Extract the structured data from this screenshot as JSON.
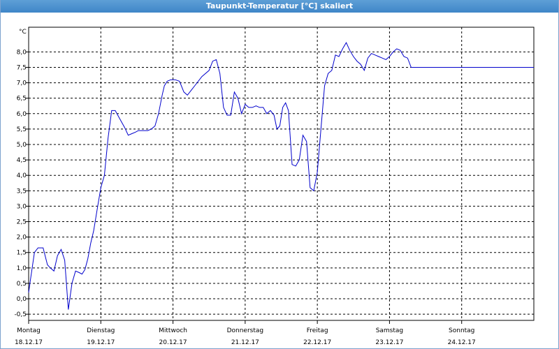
{
  "window": {
    "title": "Taupunkt-Temperatur [°C] skaliert"
  },
  "chart_data": {
    "type": "line",
    "title": "Taupunkt-Temperatur [°C] skaliert",
    "unit": "°C",
    "ylim": [
      -0.7,
      8.8
    ],
    "yticks": [
      "-0,5",
      "0,0",
      "0,5",
      "1,0",
      "1,5",
      "2,0",
      "2,5",
      "3,0",
      "3,5",
      "4,0",
      "4,5",
      "5,0",
      "5,5",
      "6,0",
      "6,5",
      "7,0",
      "7,5",
      "8,0"
    ],
    "ytick_values": [
      -0.5,
      0,
      0.5,
      1,
      1.5,
      2,
      2.5,
      3,
      3.5,
      4,
      4.5,
      5,
      5.5,
      6,
      6.5,
      7,
      7.5,
      8
    ],
    "xlim": [
      0,
      7
    ],
    "day_labels": [
      {
        "day": "Montag",
        "date": "18.12.17"
      },
      {
        "day": "Dienstag",
        "date": "19.12.17"
      },
      {
        "day": "Mittwoch",
        "date": "20.12.17"
      },
      {
        "day": "Donnerstag",
        "date": "21.12.17"
      },
      {
        "day": "Freitag",
        "date": "22.12.17"
      },
      {
        "day": "Samstag",
        "date": "23.12.17"
      },
      {
        "day": "Sonntag",
        "date": "24.12.17"
      }
    ],
    "grid": true,
    "line_color": "#0000cc",
    "series": [
      {
        "x": [
          0,
          0.03,
          0.08,
          0.13,
          0.2,
          0.26,
          0.3,
          0.35,
          0.4,
          0.45,
          0.5,
          0.55,
          0.6,
          0.65,
          0.7,
          0.74,
          0.78,
          0.82,
          0.86,
          0.9,
          0.95,
          1.0,
          1.05,
          1.1,
          1.15,
          1.2,
          1.27,
          1.33,
          1.38,
          1.43,
          1.48,
          1.52,
          1.56,
          1.6,
          1.65,
          1.7,
          1.75,
          1.8,
          1.85,
          1.88,
          1.92,
          1.97,
          2.03,
          2.09,
          2.15,
          2.2,
          2.3,
          2.4,
          2.5,
          2.55,
          2.6,
          2.65,
          2.7,
          2.75,
          2.8,
          2.85,
          2.9,
          2.95,
          3.0,
          3.05,
          3.1,
          3.15,
          3.2,
          3.25,
          3.3,
          3.35,
          3.4,
          3.44,
          3.48,
          3.52,
          3.56,
          3.6,
          3.65,
          3.7,
          3.75,
          3.8,
          3.85,
          3.9,
          3.95,
          4.0,
          4.05,
          4.1,
          4.15,
          4.2,
          4.25,
          4.3,
          4.35,
          4.4,
          4.45,
          4.5,
          4.55,
          4.6,
          4.65,
          4.7,
          4.75,
          4.8,
          4.85,
          4.9,
          4.95,
          5.0,
          5.05,
          5.1,
          5.15,
          5.2,
          5.25,
          5.3,
          5.35,
          5.4,
          5.45,
          5.5,
          5.55,
          5.6,
          5.65,
          5.7,
          5.75,
          5.8,
          5.85,
          5.9,
          5.95,
          6.0,
          6.05,
          6.1,
          6.15,
          6.2,
          6.25,
          6.3,
          6.35,
          6.4,
          6.45,
          6.5,
          6.55,
          6.6,
          6.65,
          6.7,
          6.75,
          6.8,
          6.85,
          6.9,
          6.95,
          7.0
        ],
        "values": [
          0.2,
          0.7,
          1.5,
          1.65,
          1.65,
          1.1,
          1.0,
          0.9,
          1.4,
          1.6,
          1.25,
          -0.35,
          0.5,
          0.9,
          0.85,
          0.8,
          0.95,
          1.3,
          1.8,
          2.2,
          2.9,
          3.6,
          4.0,
          5.2,
          6.1,
          6.1,
          5.8,
          5.55,
          5.3,
          5.35,
          5.4,
          5.45,
          5.45,
          5.45,
          5.45,
          5.5,
          5.6,
          6.0,
          6.6,
          6.9,
          7.05,
          7.1,
          7.1,
          7.05,
          6.7,
          6.6,
          6.9,
          7.2,
          7.4,
          7.7,
          7.75,
          7.3,
          6.2,
          5.95,
          5.95,
          6.7,
          6.5,
          6.0,
          6.3,
          6.2,
          6.2,
          6.25,
          6.2,
          6.2,
          6.0,
          6.1,
          5.95,
          5.5,
          5.6,
          6.2,
          6.35,
          6.1,
          4.35,
          4.3,
          4.5,
          5.3,
          5.1,
          3.6,
          3.5,
          4.1,
          5.5,
          6.9,
          7.3,
          7.4,
          7.9,
          7.85,
          8.1,
          8.3,
          8.05,
          7.85,
          7.7,
          7.6,
          7.4,
          7.8,
          7.95,
          7.9,
          7.85,
          7.8,
          7.75,
          7.85,
          8.0,
          8.1,
          8.05,
          7.85,
          7.8,
          7.5,
          7.5,
          7.5,
          7.5,
          7.5,
          7.5,
          7.5,
          7.5,
          7.5,
          7.5,
          7.5,
          7.5,
          7.5,
          7.5,
          7.5,
          7.5,
          7.5,
          7.5,
          7.5,
          7.5,
          7.5,
          7.5,
          7.5,
          7.5,
          7.5,
          7.5,
          7.5,
          7.5,
          7.5,
          7.5,
          7.5,
          7.5,
          7.5,
          7.5,
          7.5
        ]
      }
    ]
  }
}
